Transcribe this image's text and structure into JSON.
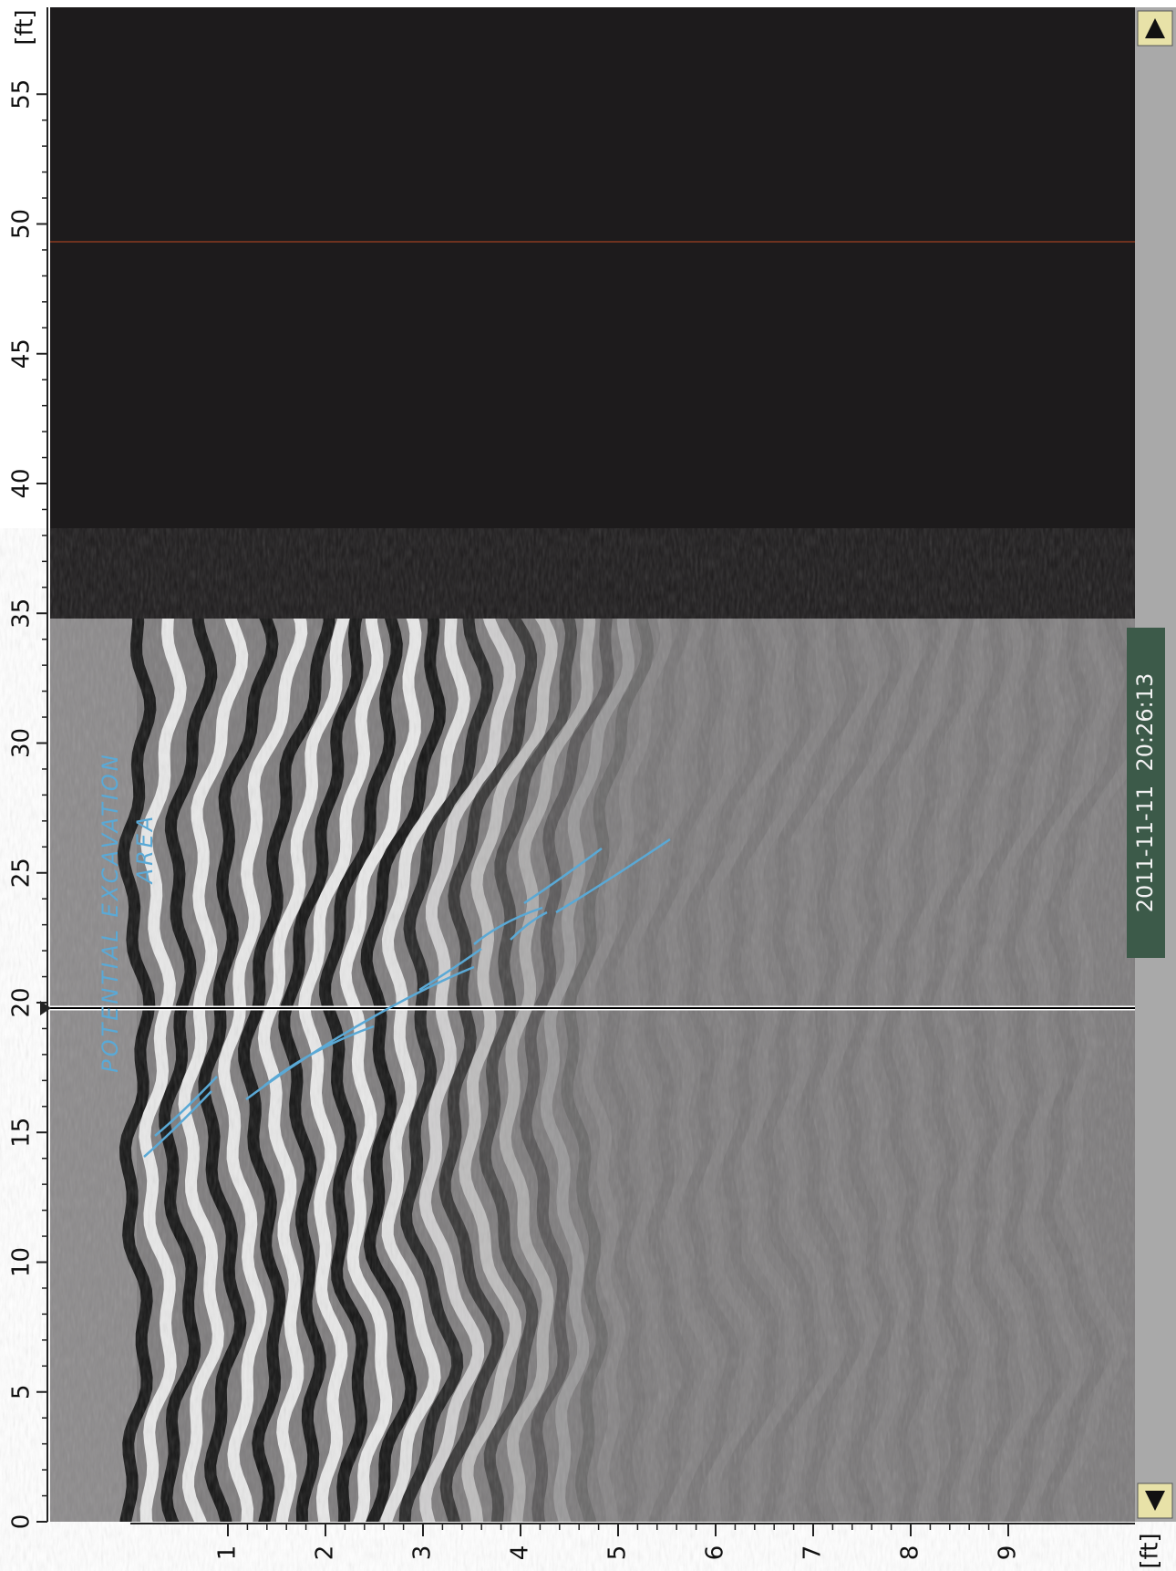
{
  "distance_axis": {
    "unit": "[ft]",
    "ticks": [
      0,
      5,
      10,
      15,
      20,
      25,
      30,
      35,
      40,
      45,
      50,
      55
    ]
  },
  "depth_axis": {
    "unit": "[ft]",
    "ticks": [
      1,
      2,
      3,
      4,
      5,
      6,
      7,
      8,
      9
    ]
  },
  "timestamp": "2011-11-11  20:26:13",
  "annotation": {
    "line1": "POTENTIAL EXCAVATION",
    "line2": "AREA"
  }
}
